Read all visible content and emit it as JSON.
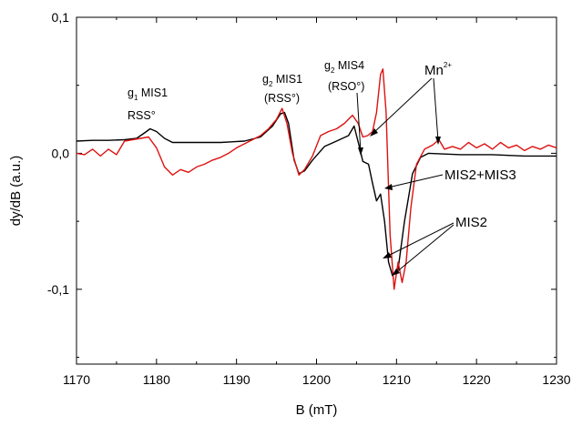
{
  "chart_data": {
    "type": "line",
    "xlabel": "B (mT)",
    "ylabel": "dy/dB (a.u.)",
    "xlim": [
      1170,
      1230
    ],
    "ylim": [
      -0.155,
      0.1
    ],
    "x_ticks": [
      1170,
      1180,
      1190,
      1200,
      1210,
      1220,
      1230
    ],
    "x_tick_labels": [
      "1170",
      "1180",
      "1190",
      "1200",
      "1210",
      "1220",
      "1230"
    ],
    "y_ticks": [
      0.1,
      0.0,
      -0.1
    ],
    "y_tick_labels": [
      "0,1",
      "0,0",
      "-0,1"
    ],
    "grid": false,
    "colors": {
      "black_series": "#000000",
      "red_series": "#dd1111"
    },
    "series": [
      {
        "color": "#000000",
        "points": [
          [
            1170,
            0.009
          ],
          [
            1172,
            0.0095
          ],
          [
            1174,
            0.0095
          ],
          [
            1176,
            0.01
          ],
          [
            1177.5,
            0.011
          ],
          [
            1178.5,
            0.015
          ],
          [
            1179.2,
            0.018
          ],
          [
            1180,
            0.016
          ],
          [
            1181,
            0.011
          ],
          [
            1182,
            0.008
          ],
          [
            1185,
            0.008
          ],
          [
            1188,
            0.008
          ],
          [
            1191,
            0.009
          ],
          [
            1193,
            0.012
          ],
          [
            1194.5,
            0.02
          ],
          [
            1195.5,
            0.029
          ],
          [
            1196,
            0.03
          ],
          [
            1196.5,
            0.022
          ],
          [
            1197.2,
            -0.005
          ],
          [
            1197.8,
            -0.015
          ],
          [
            1198.5,
            -0.013
          ],
          [
            1199.5,
            -0.005
          ],
          [
            1201,
            0.005
          ],
          [
            1202.5,
            0.009
          ],
          [
            1204,
            0.013
          ],
          [
            1204.7,
            0.02
          ],
          [
            1205.3,
            0.006
          ],
          [
            1205.8,
            -0.006
          ],
          [
            1206.5,
            -0.008
          ],
          [
            1207,
            -0.022
          ],
          [
            1207.5,
            -0.035
          ],
          [
            1208,
            -0.03
          ],
          [
            1208.5,
            -0.05
          ],
          [
            1209,
            -0.08
          ],
          [
            1209.5,
            -0.09
          ],
          [
            1210.2,
            -0.085
          ],
          [
            1211,
            -0.05
          ],
          [
            1212,
            -0.015
          ],
          [
            1213,
            -0.003
          ],
          [
            1214,
            0.0
          ],
          [
            1218,
            -0.001
          ],
          [
            1222,
            -0.001
          ],
          [
            1226,
            -0.002
          ],
          [
            1230,
            -0.002
          ]
        ]
      },
      {
        "color": "#dd1111",
        "points": [
          [
            1170,
            0.0
          ],
          [
            1171,
            -0.001
          ],
          [
            1172,
            0.003
          ],
          [
            1173,
            -0.002
          ],
          [
            1174,
            0.003
          ],
          [
            1175,
            -0.001
          ],
          [
            1176,
            0.009
          ],
          [
            1177,
            0.01
          ],
          [
            1178,
            0.011
          ],
          [
            1179,
            0.012
          ],
          [
            1180,
            0.004
          ],
          [
            1181,
            -0.01
          ],
          [
            1182,
            -0.016
          ],
          [
            1183,
            -0.012
          ],
          [
            1184,
            -0.014
          ],
          [
            1185,
            -0.01
          ],
          [
            1186,
            -0.008
          ],
          [
            1187,
            -0.005
          ],
          [
            1188,
            -0.003
          ],
          [
            1189,
            0.0
          ],
          [
            1190,
            0.004
          ],
          [
            1191,
            0.007
          ],
          [
            1192,
            0.01
          ],
          [
            1193,
            0.013
          ],
          [
            1194,
            0.018
          ],
          [
            1195,
            0.025
          ],
          [
            1195.7,
            0.033
          ],
          [
            1196.3,
            0.022
          ],
          [
            1197,
            0.0
          ],
          [
            1197.8,
            -0.016
          ],
          [
            1198.5,
            -0.012
          ],
          [
            1199.5,
            -0.002
          ],
          [
            1200.5,
            0.013
          ],
          [
            1201.5,
            0.016
          ],
          [
            1202.5,
            0.018
          ],
          [
            1203.5,
            0.022
          ],
          [
            1204.5,
            0.028
          ],
          [
            1205.2,
            0.022
          ],
          [
            1205.8,
            0.012
          ],
          [
            1206.4,
            0.013
          ],
          [
            1207,
            0.016
          ],
          [
            1207.5,
            0.03
          ],
          [
            1208,
            0.058
          ],
          [
            1208.3,
            0.062
          ],
          [
            1208.7,
            0.03
          ],
          [
            1209.2,
            -0.06
          ],
          [
            1209.7,
            -0.1
          ],
          [
            1210.2,
            -0.08
          ],
          [
            1210.7,
            -0.095
          ],
          [
            1211.2,
            -0.08
          ],
          [
            1211.8,
            -0.04
          ],
          [
            1212.5,
            -0.008
          ],
          [
            1213.5,
            0.003
          ],
          [
            1214.5,
            0.006
          ],
          [
            1215.3,
            0.01
          ],
          [
            1216,
            0.003
          ],
          [
            1217,
            0.005
          ],
          [
            1218,
            0.003
          ],
          [
            1219,
            0.008
          ],
          [
            1220,
            0.004
          ],
          [
            1221,
            0.007
          ],
          [
            1222,
            0.003
          ],
          [
            1223,
            0.008
          ],
          [
            1224,
            0.004
          ],
          [
            1225,
            0.006
          ],
          [
            1226,
            0.002
          ],
          [
            1227,
            0.005
          ],
          [
            1228,
            0.003
          ],
          [
            1229,
            0.006
          ],
          [
            1230,
            0.004
          ]
        ]
      }
    ],
    "annotations": [
      {
        "main": "g",
        "sub": "1",
        "rest": " MIS1",
        "line2": "RSS°"
      },
      {
        "main": "g",
        "sub": "2",
        "rest": " MIS1",
        "line2": "(RSS°)"
      },
      {
        "main": "g",
        "sub": "2",
        "rest": " MIS4",
        "line2": "(RSO°)"
      },
      {
        "main": "Mn",
        "sup": "2+"
      },
      {
        "main": "MIS2+MIS3"
      },
      {
        "main": "MIS2"
      }
    ]
  }
}
